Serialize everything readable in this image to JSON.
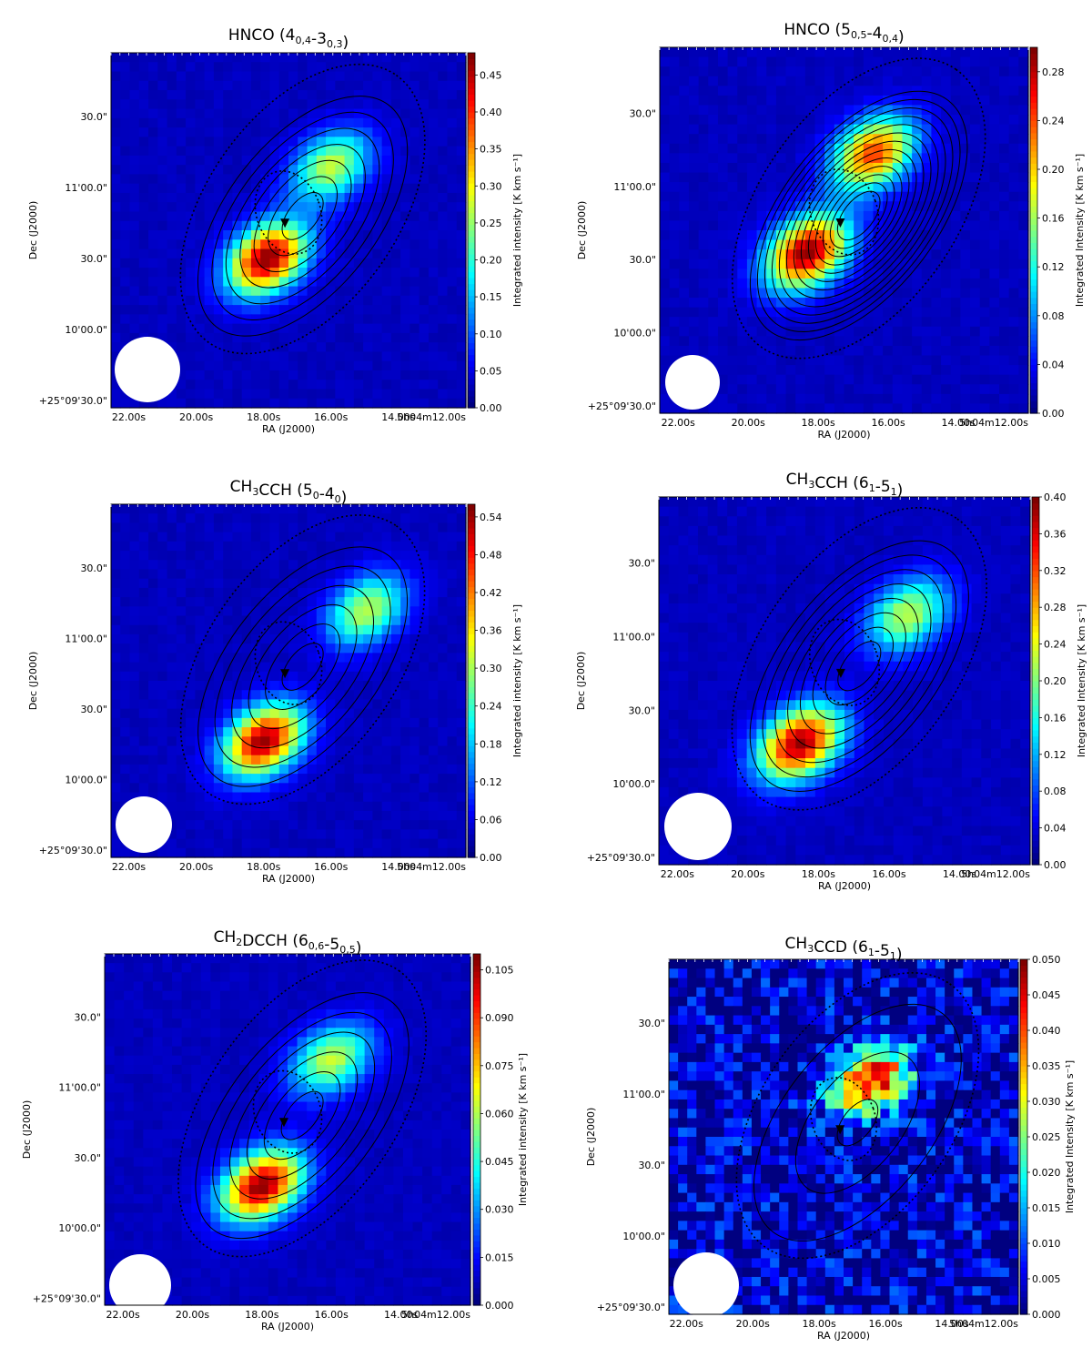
{
  "chart_data": [
    {
      "type": "heatmap",
      "title": "HNCO (4<sub>0,4</sub>-3<sub>0,3</sub>)",
      "xlabel": "RA (J2000)",
      "ylabel": "Dec (J2000)",
      "colorbar_label": "Integrated intensity [K km s⁻¹]",
      "x_ticks": [
        "22.00s",
        "20.00s",
        "18.00s",
        "16.00s",
        "14.00s",
        "5h04m12.00s"
      ],
      "y_ticks": [
        "+25°09'30.0\"",
        "10'00.0\"",
        "30.0\"",
        "11'00.0\"",
        "30.0\""
      ],
      "colorbar_ticks": [
        "0.00",
        "0.05",
        "0.10",
        "0.15",
        "0.20",
        "0.25",
        "0.30",
        "0.35",
        "0.40",
        "0.45"
      ],
      "colorbar_range": [
        0,
        0.48
      ],
      "peaks": [
        {
          "x": 0.62,
          "y": 0.68,
          "w": 0.3
        },
        {
          "x": 0.44,
          "y": 0.42,
          "w": 0.55
        }
      ],
      "contour_levels": 7
    },
    {
      "type": "heatmap",
      "title": "HNCO (5<sub>0,5</sub>-4<sub>0,4</sub>)",
      "xlabel": "RA (J2000)",
      "ylabel": "Dec (J2000)",
      "colorbar_label": "Integrated Intensity [K km s⁻¹]",
      "x_ticks": [
        "22.00s",
        "20.00s",
        "18.00s",
        "16.00s",
        "14.00s",
        "5h04m12.00s"
      ],
      "y_ticks": [
        "+25°09'30.0\"",
        "10'00.0\"",
        "30.0\"",
        "11'00.0\"",
        "30.0\""
      ],
      "colorbar_ticks": [
        "0.00",
        "0.04",
        "0.08",
        "0.12",
        "0.16",
        "0.20",
        "0.24",
        "0.28"
      ],
      "colorbar_range": [
        0,
        0.3
      ],
      "peaks": [
        {
          "x": 0.58,
          "y": 0.71,
          "w": 0.45
        },
        {
          "x": 0.4,
          "y": 0.44,
          "w": 0.55
        }
      ],
      "contour_levels": 13
    },
    {
      "type": "heatmap",
      "title": "CH<sub>3</sub>CCH (5<sub>0</sub>-4<sub>0</sub>)",
      "xlabel": "RA (J2000)",
      "ylabel": "Dec (J2000)",
      "colorbar_label": "Integrated intensity [K km s⁻¹]",
      "x_ticks": [
        "22.00s",
        "20.00s",
        "18.00s",
        "16.00s",
        "14.00s",
        "5h04m12.00s"
      ],
      "y_ticks": [
        "+25°09'30.0\"",
        "10'00.0\"",
        "30.0\"",
        "11'00.0\"",
        "30.0\""
      ],
      "colorbar_ticks": [
        "0.00",
        "0.06",
        "0.12",
        "0.18",
        "0.24",
        "0.30",
        "0.36",
        "0.42",
        "0.48",
        "0.54"
      ],
      "colorbar_range": [
        0,
        0.56
      ],
      "peaks": [
        {
          "x": 0.72,
          "y": 0.7,
          "w": 0.3
        },
        {
          "x": 0.43,
          "y": 0.33,
          "w": 0.55
        }
      ],
      "contour_levels": 6
    },
    {
      "type": "heatmap",
      "title": "CH<sub>3</sub>CCH (6<sub>1</sub>-5<sub>1</sub>)",
      "xlabel": "RA (J2000)",
      "ylabel": "Dec (J2000)",
      "colorbar_label": "Integrated Intensity [K km s⁻¹]",
      "x_ticks": [
        "22.00s",
        "20.00s",
        "18.00s",
        "16.00s",
        "14.00s",
        "5h04m12.00s"
      ],
      "y_ticks": [
        "+25°09'30.0\"",
        "10'00.0\"",
        "30.0\"",
        "11'00.0\"",
        "30.0\""
      ],
      "colorbar_ticks": [
        "0.00",
        "0.04",
        "0.08",
        "0.12",
        "0.16",
        "0.20",
        "0.24",
        "0.28",
        "0.32",
        "0.36",
        "0.40"
      ],
      "colorbar_range": [
        0,
        0.4
      ],
      "peaks": [
        {
          "x": 0.67,
          "y": 0.68,
          "w": 0.3
        },
        {
          "x": 0.38,
          "y": 0.33,
          "w": 0.55
        }
      ],
      "contour_levels": 8
    },
    {
      "type": "heatmap",
      "title": "CH<sub>2</sub>DCCH (6<sub>0,6</sub>-5<sub>0,5</sub>)",
      "xlabel": "RA (J2000)",
      "ylabel": "Dec (J2000)",
      "colorbar_label": "Integrated intensity [K km s⁻¹]",
      "x_ticks": [
        "22.00s",
        "20.00s",
        "18.00s",
        "16.00s",
        "14.00s",
        "5h04m12.00s"
      ],
      "y_ticks": [
        "+25°09'30.0\"",
        "10'00.0\"",
        "30.0\"",
        "11'00.0\"",
        "30.0\""
      ],
      "colorbar_ticks": [
        "0.000",
        "0.015",
        "0.030",
        "0.045",
        "0.060",
        "0.075",
        "0.090",
        "0.105"
      ],
      "colorbar_range": [
        0,
        0.11
      ],
      "peaks": [
        {
          "x": 0.62,
          "y": 0.7,
          "w": 0.3
        },
        {
          "x": 0.43,
          "y": 0.34,
          "w": 0.55
        }
      ],
      "contour_levels": 6
    },
    {
      "type": "heatmap",
      "title": "CH<sub>3</sub>CCD (6<sub>1</sub>-5<sub>1</sub>)",
      "xlabel": "RA (J2000)",
      "ylabel": "Dec (J2000)",
      "colorbar_label": "Integrated Intensity [K km s⁻¹]",
      "x_ticks": [
        "22.00s",
        "20.00s",
        "18.00s",
        "16.00s",
        "14.00s",
        "5h04m12.00s"
      ],
      "y_ticks": [
        "+25°09'30.0\"",
        "10'00.0\"",
        "30.0\"",
        "11'00.0\"",
        "30.0\""
      ],
      "colorbar_ticks": [
        "0.000",
        "0.005",
        "0.010",
        "0.015",
        "0.020",
        "0.025",
        "0.030",
        "0.035",
        "0.040",
        "0.045",
        "0.050"
      ],
      "colorbar_range": [
        0,
        0.05
      ],
      "peaks": [
        {
          "x": 0.58,
          "y": 0.66,
          "w": 1
        }
      ],
      "contour_levels": 3
    }
  ],
  "colors": {
    "background": "#ffffff",
    "marker": "#000000",
    "beam": "#ffffff"
  }
}
